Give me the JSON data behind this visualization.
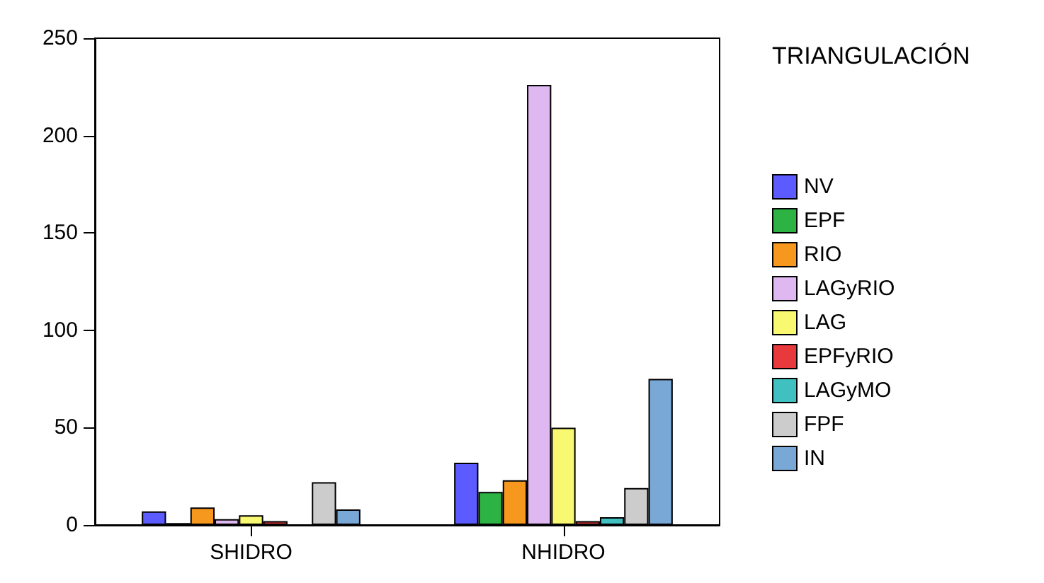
{
  "chart_data": {
    "type": "bar",
    "legend_title": "TRIANGULACIÓN",
    "categories": [
      "SHIDRO",
      "NHIDRO"
    ],
    "series": [
      {
        "name": "NV",
        "color": "#5b5bff",
        "values": [
          7,
          32
        ]
      },
      {
        "name": "EPF",
        "color": "#2db343",
        "values": [
          1,
          17
        ]
      },
      {
        "name": "RIO",
        "color": "#f7981e",
        "values": [
          9,
          23
        ]
      },
      {
        "name": "LAGyRIO",
        "color": "#dfb8f2",
        "values": [
          3,
          226
        ]
      },
      {
        "name": "LAG",
        "color": "#f9f871",
        "values": [
          5,
          50
        ]
      },
      {
        "name": "EPFyRIO",
        "color": "#e8393c",
        "values": [
          2,
          2
        ]
      },
      {
        "name": "LAGyMO",
        "color": "#40c0c0",
        "values": [
          null,
          4
        ]
      },
      {
        "name": "FPF",
        "color": "#cccccc",
        "values": [
          22,
          19
        ]
      },
      {
        "name": "IN",
        "color": "#7aa8d6",
        "values": [
          8,
          75
        ]
      }
    ],
    "ylim": [
      0,
      250
    ],
    "yticks": [
      0,
      50,
      100,
      150,
      200,
      250
    ],
    "grid": false,
    "legend": "right"
  }
}
